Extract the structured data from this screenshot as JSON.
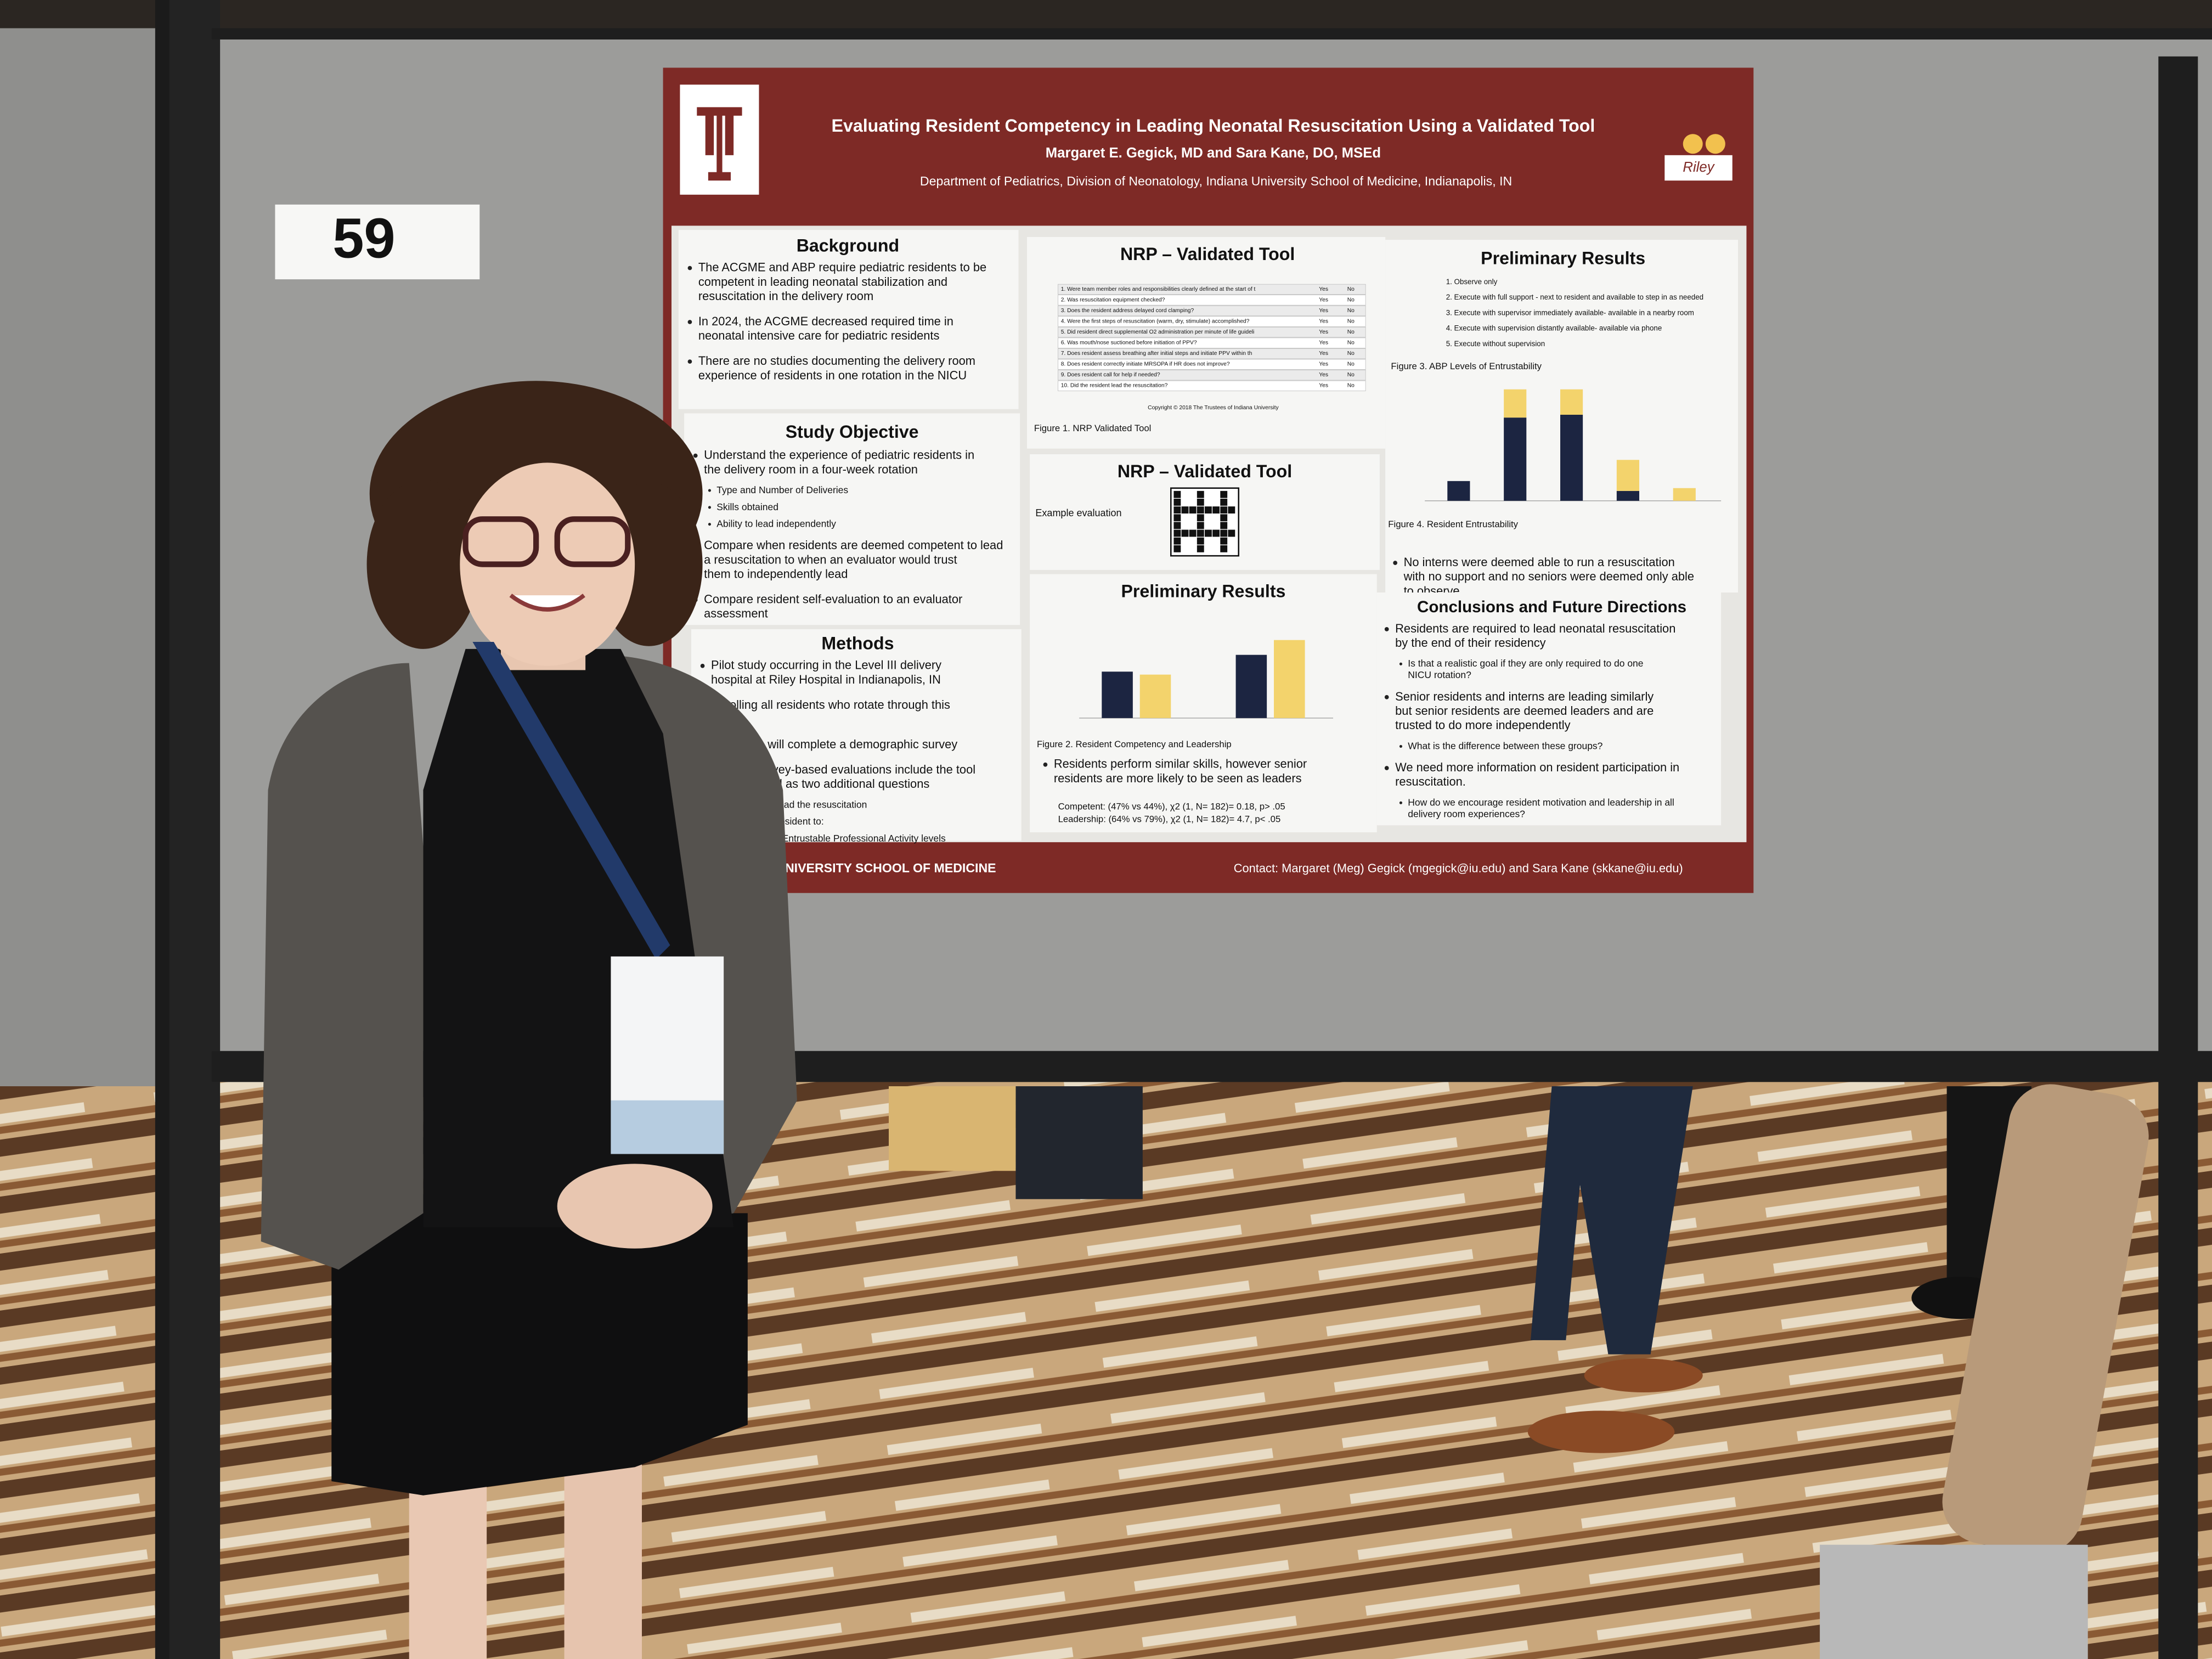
{
  "board_number": "59",
  "poster": {
    "title": "Evaluating Resident Competency in Leading Neonatal Resuscitation Using a Validated Tool",
    "authors": "Margaret E. Gegick, MD and Sara Kane, DO, MSEd",
    "affiliation": "Department of Pediatrics, Division of Neonatology, Indiana University School of Medicine, Indianapolis, IN",
    "right_logo": "Riley",
    "background": {
      "heading": "Background",
      "bullets": [
        {
          "text": "The ACGME and ABP require pediatric residents to be competent in leading neonatal stabilization and resuscitation in the delivery room"
        },
        {
          "text": "In 2024, the ACGME decreased required time in neonatal intensive care for pediatric residents"
        },
        {
          "text": "There are no studies documenting the delivery room experience of residents in one rotation in the NICU"
        }
      ]
    },
    "objective": {
      "heading": "Study Objective",
      "bullets": [
        {
          "text": "Understand the experience of pediatric residents in the delivery room in a four-week rotation",
          "sub": [
            "Type and Number of Deliveries",
            "Skills obtained",
            "Ability to lead independently"
          ]
        },
        {
          "text": "Compare when residents are deemed competent to lead a resuscitation to when an evaluator would trust them to independently lead"
        },
        {
          "text": "Compare resident self-evaluation to an evaluator assessment"
        }
      ]
    },
    "methods": {
      "heading": "Methods",
      "bullets": [
        {
          "text": "Pilot study occurring in the Level III delivery hospital at Riley Hospital in Indianapolis, IN"
        },
        {
          "text": "Enrolling all residents who rotate through this unit"
        },
        {
          "text": "Residents will complete a demographic survey"
        },
        {
          "text": "R code, survey-based evaluations include the tool ure 1) as well as two additional questions",
          "sub": [
            "the resident lead the resuscitation",
            "uld trust the resident to:",
            "d on the ABP Entrustable Professional Activity levels"
          ]
        }
      ]
    },
    "tool": {
      "heading": "NRP – Validated Tool",
      "items": [
        "1. Were team member roles and responsibilities clearly defined at the start of the resuscitation?",
        "2. Was resuscitation equipment checked?",
        "3. Does the resident address delayed cord clamping?",
        "4. Were the first steps of resuscitation (warm, dry, stimulate) accomplished?",
        "5. Did resident direct supplemental O2 administration per minute of life guidelines?",
        "6. Was mouth/nose suctioned before initiation of PPV?",
        "7. Does resident assess breathing after initial steps and initiate PPV within the first 60 seconds if apneic? If breathing, does resident evaluate HR and initiate PPV for HR <100?",
        "8. Does resident correctly initiate MRSOPA if HR does not improve?",
        "9. Does resident call for help if needed?",
        "10. Did the resident lead the resuscitation?"
      ],
      "answers": [
        "Yes",
        "No"
      ],
      "copyright": "Copyright © 2018 The Trustees of Indiana University",
      "caption": "Figure 1. NRP Validated Tool"
    },
    "qr": {
      "heading": "NRP – Validated Tool",
      "label": "Example evaluation"
    },
    "results_mid": {
      "heading": "Preliminary Results",
      "chart": {
        "type": "bar",
        "ylim": [
          0,
          100
        ],
        "series": [
          {
            "color": "#1c2541",
            "values": [
              47,
              64
            ]
          },
          {
            "color": "#f3d36c",
            "values": [
              44,
              79
            ]
          }
        ]
      },
      "caption": "Figure 2. Resident Competency and Leadership",
      "bullets": [
        {
          "text": "Residents perform similar skills, however senior residents are more likely to be seen as leaders"
        }
      ],
      "stats": [
        "Competent: (47% vs 44%), χ2 (1, N= 182)= 0.18, p> .05",
        "Leadership: (64% vs 79%), χ2 (1, N= 182)= 4.7, p< .05"
      ]
    },
    "results_right": {
      "heading": "Preliminary Results",
      "levels": [
        "1. Observe only",
        "2. Execute with full support - next to resident and available to step in as needed",
        "3. Execute with supervisor immediately available- available in a nearby room",
        "4. Execute with supervision distantly available- available via phone",
        "5. Execute without supervision"
      ],
      "caption_top": "Figure 3. ABP Levels of Entrustability",
      "chart": {
        "type": "bar",
        "stacked": true,
        "ylim": [
          0,
          80
        ],
        "series": [
          {
            "color": "#1c2541",
            "values": [
              14,
              59,
              61,
              7,
              0
            ]
          },
          {
            "color": "#f3d36c",
            "values": [
              0,
              20,
              18,
              22,
              9
            ]
          }
        ]
      },
      "caption": "Figure 4. Resident Entrustability",
      "bullets": [
        {
          "text": "No interns were deemed able to run a resuscitation with no support and no seniors were deemed only able to observe"
        }
      ]
    },
    "conclusions": {
      "heading": "Conclusions and Future Directions",
      "bullets": [
        {
          "text": "Residents are required to lead neonatal resuscitation by the end of their residency",
          "sub": [
            "Is that a realistic goal if they are only required to do one NICU rotation?"
          ]
        },
        {
          "text": "Senior residents and interns are leading similarly but senior residents are deemed leaders and are trusted to do more independently",
          "sub": [
            "What is the difference between these groups?"
          ]
        },
        {
          "text": "We need more information on resident participation in resuscitation.",
          "sub": [
            "How do we encourage resident motivation and leadership in all delivery room experiences?"
          ]
        }
      ]
    },
    "footer_left": "UNIVERSITY SCHOOL OF MEDICINE",
    "footer_contact": "Contact: Margaret (Meg) Gegick (mgegick@iu.edu) and Sara Kane (skkane@iu.edu)"
  }
}
